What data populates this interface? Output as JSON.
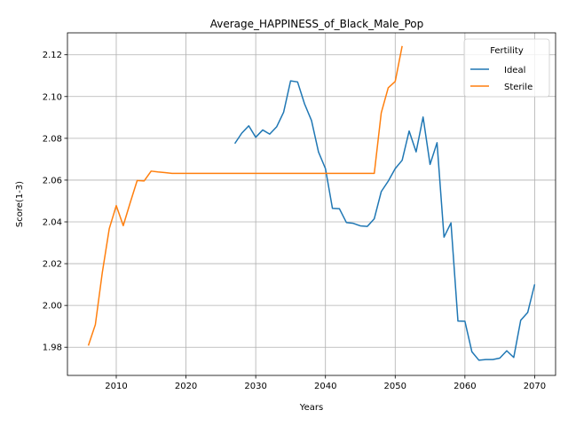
{
  "chart_data": {
    "type": "line",
    "title": "Average_HAPPINESS_of_Black_Male_Pop",
    "xlabel": "Years",
    "ylabel": "Score(1-3)",
    "xlim": [
      2003,
      2073
    ],
    "ylim": [
      1.9665,
      2.1305
    ],
    "xticks": [
      2010,
      2020,
      2030,
      2040,
      2050,
      2060,
      2070
    ],
    "yticks": [
      1.98,
      2.0,
      2.02,
      2.04,
      2.06,
      2.08,
      2.1,
      2.12
    ],
    "ytick_labels": [
      "1.98",
      "2.00",
      "2.02",
      "2.04",
      "2.06",
      "2.08",
      "2.10",
      "2.12"
    ],
    "grid": true,
    "legend": {
      "title": "Fertility",
      "placement": "top-right"
    },
    "series": [
      {
        "name": "Ideal",
        "color": "#1f77b4",
        "x": [
          2027,
          2028,
          2029,
          2030,
          2031,
          2032,
          2033,
          2034,
          2035,
          2036,
          2037,
          2038,
          2039,
          2040,
          2041,
          2042,
          2043,
          2044,
          2045,
          2046,
          2047,
          2048,
          2049,
          2050,
          2051,
          2052,
          2053,
          2054,
          2055,
          2056,
          2057,
          2058,
          2059,
          2060,
          2061,
          2062,
          2063,
          2064,
          2065,
          2066,
          2067,
          2068,
          2069,
          2070
        ],
        "y": [
          2.0775,
          2.0825,
          2.086,
          2.0805,
          2.084,
          2.082,
          2.0855,
          2.0925,
          2.1075,
          2.107,
          2.0965,
          2.0885,
          2.0735,
          2.0655,
          2.0465,
          2.0463,
          2.0397,
          2.0393,
          2.0381,
          2.0378,
          2.0415,
          2.0545,
          2.0595,
          2.0655,
          2.0695,
          2.0835,
          2.0735,
          2.0902,
          2.0675,
          2.0779,
          2.0327,
          2.0395,
          1.9925,
          1.9924,
          1.9778,
          1.9738,
          1.9741,
          1.9741,
          1.9748,
          1.9783,
          1.9751,
          1.9929,
          1.9966,
          2.0101
        ]
      },
      {
        "name": "Sterile",
        "color": "#ff7f0e",
        "x": [
          2006,
          2007,
          2008,
          2009,
          2010,
          2011,
          2012,
          2013,
          2014,
          2015,
          2016,
          2017,
          2018,
          2019,
          2020,
          2021,
          2022,
          2023,
          2024,
          2025,
          2026,
          2027,
          2028,
          2029,
          2030,
          2031,
          2032,
          2033,
          2034,
          2035,
          2036,
          2037,
          2038,
          2039,
          2040,
          2041,
          2042,
          2043,
          2044,
          2045,
          2046,
          2047,
          2048,
          2049,
          2050,
          2051
        ],
        "y": [
          1.9808,
          1.9908,
          2.0158,
          2.0368,
          2.0478,
          2.0382,
          2.0492,
          2.0598,
          2.0596,
          2.0643,
          2.0639,
          2.0636,
          2.0632,
          2.0632,
          2.0632,
          2.0632,
          2.0632,
          2.0632,
          2.0632,
          2.0632,
          2.0632,
          2.0632,
          2.0632,
          2.0632,
          2.0632,
          2.0632,
          2.0632,
          2.0632,
          2.0632,
          2.0632,
          2.0632,
          2.0632,
          2.0632,
          2.0632,
          2.0632,
          2.0632,
          2.0632,
          2.0632,
          2.0632,
          2.0632,
          2.0632,
          2.0632,
          2.0922,
          2.1042,
          2.1072,
          2.1242
        ]
      }
    ]
  }
}
